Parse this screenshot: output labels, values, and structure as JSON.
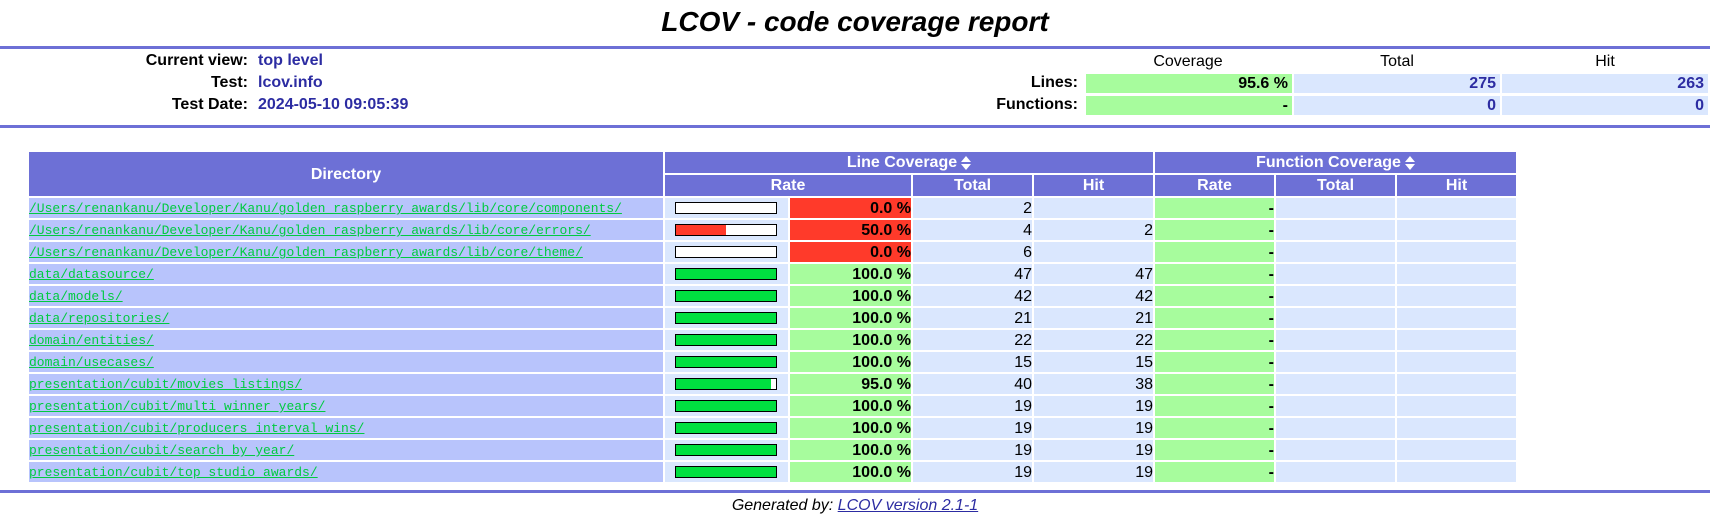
{
  "title": "LCOV - code coverage report",
  "info": {
    "current_view_label": "Current view:",
    "current_view": "top level",
    "test_label": "Test:",
    "test": "lcov.info",
    "date_label": "Test Date:",
    "date": "2024-05-10 09:05:39"
  },
  "summary": {
    "headers": [
      "Coverage",
      "Total",
      "Hit"
    ],
    "lines_label": "Lines:",
    "lines": {
      "coverage": "95.6 %",
      "total": "275",
      "hit": "263"
    },
    "functions_label": "Functions:",
    "functions": {
      "coverage": "-",
      "total": "0",
      "hit": "0"
    }
  },
  "table": {
    "directory_header": "Directory",
    "line_coverage_header": "Line Coverage",
    "function_coverage_header": "Function Coverage",
    "sub_headers": {
      "rate": "Rate",
      "total": "Total",
      "hit": "Hit"
    },
    "rows": [
      {
        "dir": "/Users/renankanu/Developer/Kanu/golden_raspberry_awards/lib/core/components/",
        "rate": "0.0 %",
        "pct": 0,
        "total": "2",
        "hit": "",
        "frate": "-"
      },
      {
        "dir": "/Users/renankanu/Developer/Kanu/golden_raspberry_awards/lib/core/errors/",
        "rate": "50.0 %",
        "pct": 50,
        "total": "4",
        "hit": "2",
        "frate": "-"
      },
      {
        "dir": "/Users/renankanu/Developer/Kanu/golden_raspberry_awards/lib/core/theme/",
        "rate": "0.0 %",
        "pct": 0,
        "total": "6",
        "hit": "",
        "frate": "-"
      },
      {
        "dir": "data/datasource/",
        "rate": "100.0 %",
        "pct": 100,
        "total": "47",
        "hit": "47",
        "frate": "-"
      },
      {
        "dir": "data/models/",
        "rate": "100.0 %",
        "pct": 100,
        "total": "42",
        "hit": "42",
        "frate": "-"
      },
      {
        "dir": "data/repositories/",
        "rate": "100.0 %",
        "pct": 100,
        "total": "21",
        "hit": "21",
        "frate": "-"
      },
      {
        "dir": "domain/entities/",
        "rate": "100.0 %",
        "pct": 100,
        "total": "22",
        "hit": "22",
        "frate": "-"
      },
      {
        "dir": "domain/usecases/",
        "rate": "100.0 %",
        "pct": 100,
        "total": "15",
        "hit": "15",
        "frate": "-"
      },
      {
        "dir": "presentation/cubit/movies_listings/",
        "rate": "95.0 %",
        "pct": 95,
        "total": "40",
        "hit": "38",
        "frate": "-"
      },
      {
        "dir": "presentation/cubit/multi_winner_years/",
        "rate": "100.0 %",
        "pct": 100,
        "total": "19",
        "hit": "19",
        "frate": "-"
      },
      {
        "dir": "presentation/cubit/producers_interval_wins/",
        "rate": "100.0 %",
        "pct": 100,
        "total": "19",
        "hit": "19",
        "frate": "-"
      },
      {
        "dir": "presentation/cubit/search_by_year/",
        "rate": "100.0 %",
        "pct": 100,
        "total": "19",
        "hit": "19",
        "frate": "-"
      },
      {
        "dir": "presentation/cubit/top_studio_awards/",
        "rate": "100.0 %",
        "pct": 100,
        "total": "19",
        "hit": "19",
        "frate": "-"
      }
    ]
  },
  "colors": {
    "high": "#a7fc9d",
    "low": "#ff3a2a",
    "bar_high": "#00e040",
    "bar_low": "#ff3a2a",
    "header": "#6d70d6"
  },
  "footer": {
    "prefix": "Generated by:",
    "link": "LCOV version 2.1-1"
  }
}
